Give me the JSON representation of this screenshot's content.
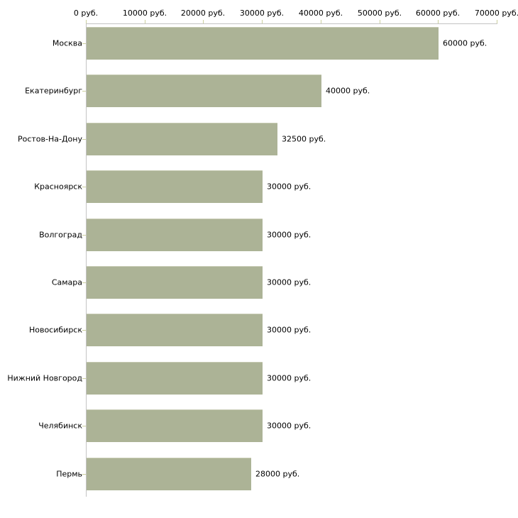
{
  "chart_data": {
    "type": "bar",
    "orientation": "horizontal",
    "title": "",
    "categories": [
      "Москва",
      "Екатеринбург",
      "Ростов-На-Дону",
      "Красноярск",
      "Волгоград",
      "Самара",
      "Новосибирск",
      "Нижний Новгород",
      "Челябинск",
      "Пермь"
    ],
    "values": [
      60000,
      40000,
      32500,
      30000,
      30000,
      30000,
      30000,
      30000,
      30000,
      28000
    ],
    "value_labels": [
      "60000 руб.",
      "40000 руб.",
      "32500 руб.",
      "30000 руб.",
      "30000 руб.",
      "30000 руб.",
      "30000 руб.",
      "30000 руб.",
      "30000 руб.",
      "28000 руб."
    ],
    "x_axis": {
      "position": "top",
      "range": [
        0,
        70000
      ],
      "ticks": [
        0,
        10000,
        20000,
        30000,
        40000,
        50000,
        60000,
        70000
      ],
      "tick_labels": [
        "0 руб.",
        "10000 руб.",
        "20000 руб.",
        "30000 руб.",
        "40000 руб.",
        "50000 руб.",
        "60000 руб.",
        "70000 руб."
      ]
    },
    "grid": false,
    "legend": false,
    "colors": {
      "bar": "#acb396",
      "bar_top_edge": "#c6cab2",
      "axis_line": "#c3c3c3",
      "tick": "#cbcf9e",
      "text": "#000000",
      "background": "#ffffff"
    }
  }
}
